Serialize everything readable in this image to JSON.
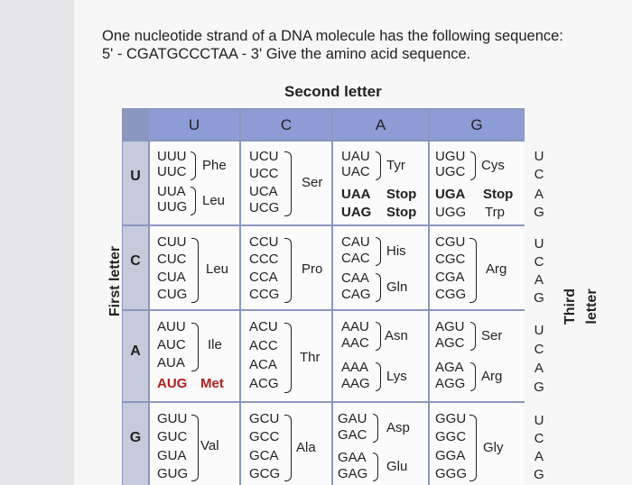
{
  "question": {
    "line1": "One nucleotide strand of a DNA molecule has the following sequence:",
    "line2": "5' - CGATGCCCTAA - 3' Give the amino acid sequence."
  },
  "labels": {
    "second_letter": "Second letter",
    "first_letter": "First letter",
    "third_letter": "Third letter"
  },
  "columns": [
    "U",
    "C",
    "A",
    "G"
  ],
  "rows": [
    "U",
    "C",
    "A",
    "G"
  ],
  "third": [
    "U",
    "C",
    "A",
    "G"
  ],
  "blocks": {
    "UU": {
      "codons": [
        "UUU",
        "UUC",
        "UUA",
        "UUG"
      ],
      "aa1": "Phe",
      "aa2": "Leu"
    },
    "UC": {
      "codons": [
        "UCU",
        "UCC",
        "UCA",
        "UCG"
      ],
      "aa": "Ser"
    },
    "UA": {
      "codons": [
        "UAU",
        "UAC",
        "UAA",
        "UAG"
      ],
      "aa1": "Tyr",
      "stop1": "Stop",
      "stop2": "Stop"
    },
    "UG": {
      "codons": [
        "UGU",
        "UGC",
        "UGA",
        "UGG"
      ],
      "aa1": "Cys",
      "stop": "Stop",
      "aa2": "Trp"
    },
    "CU": {
      "codons": [
        "CUU",
        "CUC",
        "CUA",
        "CUG"
      ],
      "aa": "Leu"
    },
    "CC": {
      "codons": [
        "CCU",
        "CCC",
        "CCA",
        "CCG"
      ],
      "aa": "Pro"
    },
    "CA": {
      "codons": [
        "CAU",
        "CAC",
        "CAA",
        "CAG"
      ],
      "aa1": "His",
      "aa2": "Gln"
    },
    "CG": {
      "codons": [
        "CGU",
        "CGC",
        "CGA",
        "CGG"
      ],
      "aa": "Arg"
    },
    "AU": {
      "codons": [
        "AUU",
        "AUC",
        "AUA",
        "AUG"
      ],
      "aa": "Ile",
      "start": "Met"
    },
    "AC": {
      "codons": [
        "ACU",
        "ACC",
        "ACA",
        "ACG"
      ],
      "aa": "Thr"
    },
    "AA": {
      "codons": [
        "AAU",
        "AAC",
        "AAA",
        "AAG"
      ],
      "aa1": "Asn",
      "aa2": "Lys"
    },
    "AG": {
      "codons": [
        "AGU",
        "AGC",
        "AGA",
        "AGG"
      ],
      "aa1": "Ser",
      "aa2": "Arg"
    },
    "GU": {
      "codons": [
        "GUU",
        "GUC",
        "GUA",
        "GUG"
      ],
      "aa": "Val"
    },
    "GC": {
      "codons": [
        "GCU",
        "GCC",
        "GCA",
        "GCG"
      ],
      "aa": "Ala"
    },
    "GA": {
      "codons": [
        "GAU",
        "GAC",
        "GAA",
        "GAG"
      ],
      "aa1": "Asp",
      "aa2": "Glu"
    },
    "GG": {
      "codons": [
        "GGU",
        "GGC",
        "GGA",
        "GGG"
      ],
      "aa": "Gly"
    }
  }
}
